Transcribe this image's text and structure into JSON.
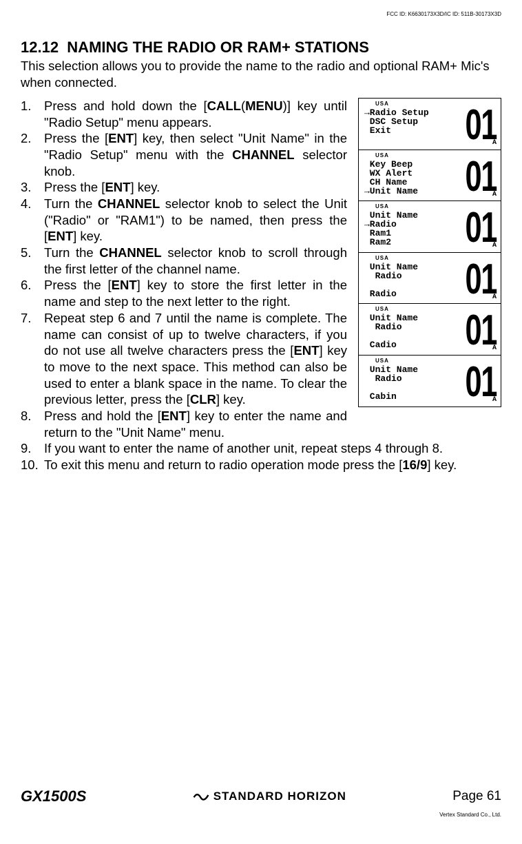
{
  "fcc_id": "FCC ID: K6630173X3D/IC ID: 511B-30173X3D",
  "vertex_note": "Vertex Standard Co., Ltd.",
  "section": {
    "number": "12.12",
    "title": "NAMING THE RADIO OR RAM+ STATIONS"
  },
  "intro": "This selection allows you to provide the name to the radio and optional RAM+ Mic's when connected.",
  "steps": {
    "s1_a": "Press and hold down the [",
    "s1_call": "CALL",
    "s1_paren_o": "(",
    "s1_menu": "MENU",
    "s1_paren_c": ")",
    "s1_b": "] key until \"",
    "s1_menu_item": "Radio Setup",
    "s1_c": "\" menu appears.",
    "s2_a": "Press the [",
    "s2_ent": "ENT",
    "s2_b": "] key, then select \"",
    "s2_unit": "Unit Name",
    "s2_c": "\" in the \"",
    "s2_radio": "Radio Setup",
    "s2_d": "\" menu with the ",
    "s2_channel": "CHANNEL",
    "s2_e": " selector knob.",
    "s3_a": "Press the [",
    "s3_ent": "ENT",
    "s3_b": "] key.",
    "s4_a": "Turn the ",
    "s4_channel": "CHANNEL",
    "s4_b": " selector knob to select the Unit (\"",
    "s4_radio": "Radio",
    "s4_c": "\" or \"",
    "s4_ram1": "RAM1",
    "s4_d": "\") to be named, then press the [",
    "s4_ent": "ENT",
    "s4_e": "] key.",
    "s5_a": "Turn the ",
    "s5_channel": "CHANNEL",
    "s5_b": " selector knob to scroll through the first letter of the channel name.",
    "s6_a": "Press the [",
    "s6_ent": "ENT",
    "s6_b": "] key to store the first letter in the name and step to the next letter to the right.",
    "s7_a": "Repeat step 6 and 7 until the name is complete. The name can consist of up to twelve characters, if you do not use all twelve characters press the [",
    "s7_ent": "ENT",
    "s7_b": "] key to move to the next space. This method can also be used to enter a blank space in the name. To clear the previous letter, press the [",
    "s7_clr": "CLR",
    "s7_c": "] key.",
    "s8_a": "Press and hold the [",
    "s8_ent": "ENT",
    "s8_b": "] key to enter the name and return to the \"",
    "s8_unit": "Unit Name",
    "s8_c": "\" menu.",
    "s9": "If you want to enter the name of another unit, repeat steps 4 through 8.",
    "s10_a": "To exit this menu and return to radio operation mode press the [",
    "s10_key": "16/9",
    "s10_b": "] key."
  },
  "lcd_screens": [
    {
      "usa": "USA",
      "arrow_row": 0,
      "lines": [
        "Radio Setup",
        "DSC Setup",
        "Exit",
        ""
      ],
      "channel": "01",
      "suffix": "A"
    },
    {
      "usa": "USA",
      "arrow_row": 3,
      "lines": [
        "Key Beep",
        "WX Alert",
        "CH Name",
        "Unit Name"
      ],
      "channel": "01",
      "suffix": "A"
    },
    {
      "usa": "USA",
      "arrow_row": 1,
      "lines": [
        "Unit Name",
        "Radio",
        "Ram1",
        "Ram2"
      ],
      "channel": "01",
      "suffix": "A"
    },
    {
      "usa": "USA",
      "arrow_row": -1,
      "lines": [
        "Unit Name",
        " Radio",
        "",
        "Radio"
      ],
      "channel": "01",
      "suffix": "A"
    },
    {
      "usa": "USA",
      "arrow_row": -1,
      "lines": [
        "Unit Name",
        " Radio",
        "",
        "Cadio"
      ],
      "channel": "01",
      "suffix": "A"
    },
    {
      "usa": "USA",
      "arrow_row": -1,
      "lines": [
        "Unit Name",
        " Radio",
        "",
        "Cabin"
      ],
      "channel": "01",
      "suffix": "A"
    }
  ],
  "footer": {
    "model": "GX1500S",
    "brand": "STANDARD HORIZON",
    "page": "Page 61"
  },
  "colors": {
    "text": "#000000",
    "bg": "#ffffff",
    "border": "#000000"
  }
}
